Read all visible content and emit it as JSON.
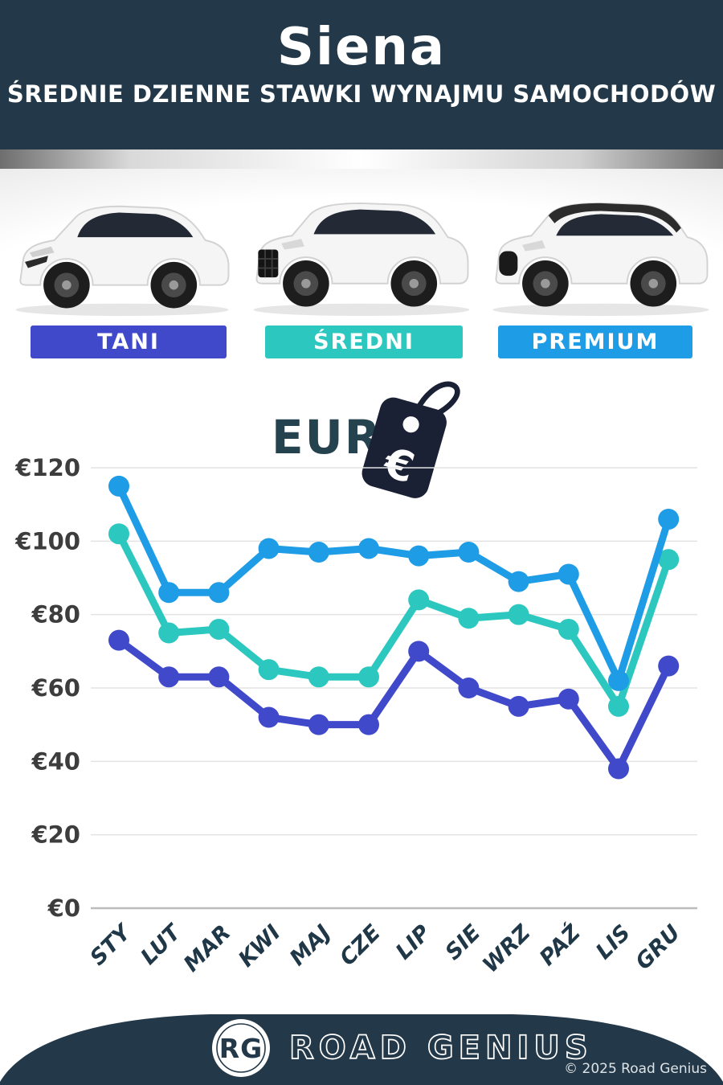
{
  "header": {
    "title": "Siena",
    "subtitle": "ŚREDNIE DZIENNE STAWKI WYNAJMU SAMOCHODÓW"
  },
  "currency": {
    "label": "EUR",
    "tag_symbol": "€"
  },
  "chart_data": {
    "type": "line",
    "title": "Średnie dzienne stawki wynajmu samochodów (EUR)",
    "categories": [
      "STY",
      "LUT",
      "MAR",
      "KWI",
      "MAJ",
      "CZE",
      "LIP",
      "SIE",
      "WRZ",
      "PAŹ",
      "LIS",
      "GRU"
    ],
    "series": [
      {
        "name": "TANI",
        "color": "#4149cb",
        "values": [
          73,
          63,
          63,
          52,
          50,
          50,
          70,
          60,
          55,
          57,
          38,
          66
        ]
      },
      {
        "name": "ŚREDNI",
        "color": "#2cc8c0",
        "values": [
          102,
          75,
          76,
          65,
          63,
          63,
          84,
          79,
          80,
          76,
          55,
          95
        ]
      },
      {
        "name": "PREMIUM",
        "color": "#1e9ce6",
        "values": [
          115,
          86,
          86,
          98,
          97,
          98,
          96,
          97,
          89,
          91,
          62,
          106
        ]
      }
    ],
    "ylabel_prefix": "€",
    "yticks": [
      0,
      20,
      40,
      60,
      80,
      100,
      120
    ],
    "ylim": [
      0,
      120
    ],
    "grid": true,
    "legend_position": "none"
  },
  "cars": [
    {
      "tier": "TANI",
      "description": "white-hatchback"
    },
    {
      "tier": "ŚREDNI",
      "description": "white-suv"
    },
    {
      "tier": "PREMIUM",
      "description": "white-suv-black-roof"
    }
  ],
  "footer": {
    "logo_initials": "RG",
    "brand": "ROAD GENIUS",
    "copyright": "© 2025 Road Genius"
  },
  "colors": {
    "header_bg": "#233848",
    "tani": "#4149cb",
    "sredni": "#2cc8c0",
    "premium": "#1e9ce6",
    "eur_text": "#24434f",
    "tag": "#1b2134",
    "axis_label": "#3d3d3d",
    "month_label": "#1f3747",
    "gridline": "#e3e3e3"
  }
}
